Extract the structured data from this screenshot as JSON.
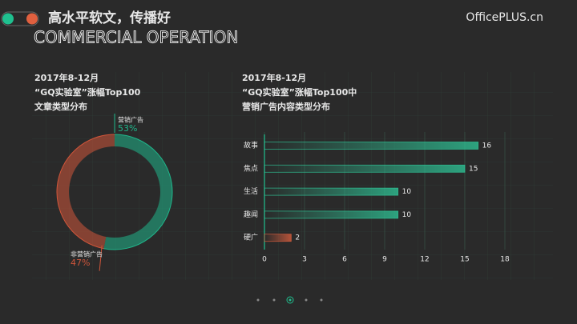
{
  "header": {
    "title": "高水平软文，传播好",
    "subtitle": "COMMERCIAL OPERATION",
    "brand": "OfficePLUS.cn"
  },
  "chart_data": [
    {
      "type": "pie",
      "title": [
        "2017年8-12月",
        "“GQ实验室”涨幅Top100",
        "文章类型分布"
      ],
      "categories": [
        "营销广告",
        "非营销广告"
      ],
      "values": [
        53,
        47
      ],
      "value_labels": [
        "53%",
        "47%"
      ],
      "colors": [
        "#1fb58a",
        "#d0553a"
      ]
    },
    {
      "type": "bar",
      "title": [
        "2017年8-12月",
        "“GQ实验室”涨幅Top100中",
        "营销广告内容类型分布"
      ],
      "categories": [
        "故事",
        "焦点",
        "生活",
        "趣闻",
        "硬广"
      ],
      "values": [
        16,
        15,
        10,
        10,
        2
      ],
      "colors": [
        "#2ec99a",
        "#2ec99a",
        "#2ec99a",
        "#2ec99a",
        "#e0603f"
      ],
      "xlim": [
        0,
        18
      ],
      "xticks": [
        0,
        3,
        6,
        9,
        12,
        15,
        18
      ],
      "grid": true
    }
  ]
}
